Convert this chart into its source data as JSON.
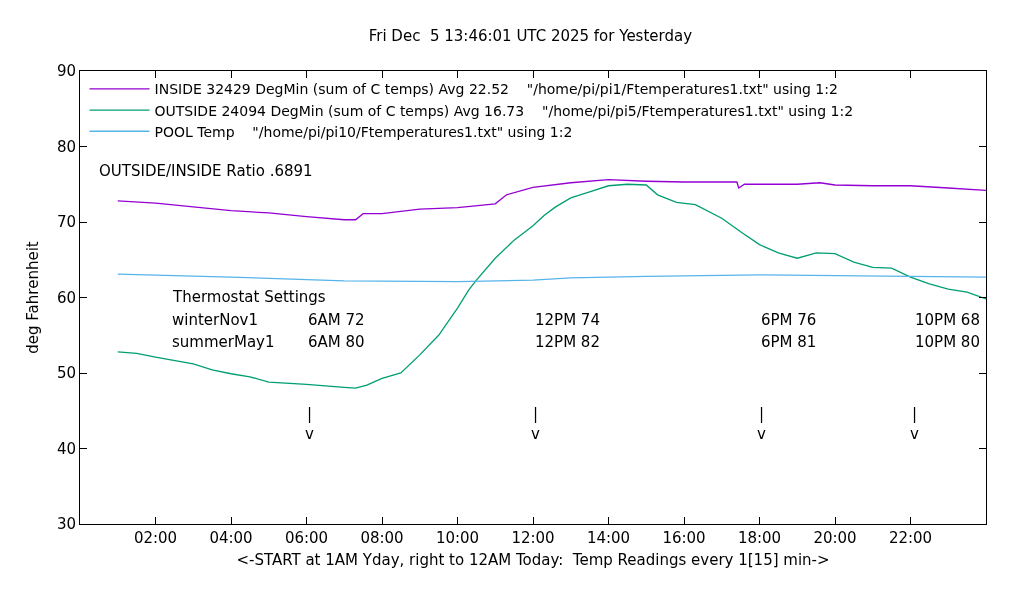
{
  "chart_data": {
    "type": "line",
    "title": "Fri Dec  5 13:46:01 UTC 2025 for Yesterday",
    "xlabel": "<-START at 1AM Yday, right to 12AM Today:  Temp Readings every 1[15] min->",
    "ylabel": "deg Fahrenheit",
    "xlim": [
      0,
      24
    ],
    "xticks": [
      {
        "value": 2,
        "label": "02:00"
      },
      {
        "value": 4,
        "label": "04:00"
      },
      {
        "value": 6,
        "label": "06:00"
      },
      {
        "value": 8,
        "label": "08:00"
      },
      {
        "value": 10,
        "label": "10:00"
      },
      {
        "value": 12,
        "label": "12:00"
      },
      {
        "value": 14,
        "label": "14:00"
      },
      {
        "value": 16,
        "label": "16:00"
      },
      {
        "value": 18,
        "label": "18:00"
      },
      {
        "value": 20,
        "label": "20:00"
      },
      {
        "value": 22,
        "label": "22:00"
      }
    ],
    "ylim": [
      30,
      90
    ],
    "yticks": [
      30,
      40,
      50,
      60,
      70,
      80,
      90
    ],
    "grid": false,
    "legend": "top left",
    "marker": "none",
    "line_style": "solid",
    "series": [
      {
        "name": "INSIDE 32429 DegMin (sum of C temps) Avg 22.52    \"/home/pi/pi1/Ftemperatures1.txt\" using 1:2",
        "color": "#9400d3",
        "x": [
          1,
          2,
          4,
          5,
          6,
          7,
          7.3,
          7.5,
          8,
          9,
          10,
          11,
          11.3,
          12,
          13,
          14,
          15,
          16,
          17,
          17.4,
          17.45,
          17.6,
          18,
          19,
          19.6,
          20,
          21,
          22,
          23,
          24
        ],
        "values": [
          72.8,
          72.5,
          71.5,
          71.2,
          70.7,
          70.3,
          70.3,
          71.1,
          71.1,
          71.7,
          71.9,
          72.4,
          73.6,
          74.6,
          75.2,
          75.6,
          75.4,
          75.3,
          75.3,
          75.3,
          74.5,
          75.0,
          75.0,
          75.0,
          75.2,
          74.9,
          74.8,
          74.8,
          74.5,
          74.2
        ]
      },
      {
        "name": "OUTSIDE 24094 DegMin (sum of C temps) Avg 16.73    \"/home/pi/pi5/Ftemperatures1.txt\" using 1:2",
        "color": "#009e73",
        "x": [
          1,
          1.5,
          2,
          3,
          3.5,
          4,
          4.5,
          5,
          6,
          7,
          7.3,
          7.6,
          8,
          8.5,
          9,
          9.5,
          10,
          10.3,
          10.5,
          11,
          11.5,
          12,
          12.3,
          12.6,
          13,
          13.5,
          14,
          14.5,
          15,
          15.3,
          15.8,
          16.3,
          17,
          17.5,
          18,
          18.5,
          19,
          19.5,
          20,
          20.5,
          21,
          21.5,
          22,
          22.5,
          23,
          23.5,
          24
        ],
        "values": [
          52.8,
          52.6,
          52.1,
          51.2,
          50.4,
          49.9,
          49.5,
          48.8,
          48.5,
          48.1,
          48.0,
          48.4,
          49.3,
          50.0,
          52.4,
          55.0,
          58.6,
          61.0,
          62.3,
          65.2,
          67.6,
          69.5,
          70.9,
          72.0,
          73.2,
          74.0,
          74.8,
          75.0,
          74.9,
          73.6,
          72.6,
          72.3,
          70.5,
          68.7,
          67.0,
          65.9,
          65.2,
          65.9,
          65.8,
          64.7,
          64.0,
          63.9,
          62.7,
          61.8,
          61.1,
          60.7,
          59.8
        ]
      },
      {
        "name": "POOL Temp    \"/home/pi/pi10/Ftemperatures1.txt\" using 1:2",
        "color": "#56b4e9",
        "x": [
          1,
          4,
          7,
          10,
          12,
          13,
          15,
          18,
          22,
          24
        ],
        "values": [
          63.1,
          62.7,
          62.2,
          62.1,
          62.3,
          62.6,
          62.8,
          63.0,
          62.8,
          62.7
        ]
      }
    ],
    "annotations": [
      "OUTSIDE/INSIDE Ratio .6891",
      "Thermostat Settings",
      "winterNov1",
      "summerMay1",
      "6AM 72",
      "6AM 80",
      "12PM 74",
      "12PM 82",
      "6PM 76",
      "6PM 81",
      "10PM 68",
      "10PM 80",
      "|\nv",
      "|\nv",
      "|\nv",
      "|\nv"
    ]
  }
}
